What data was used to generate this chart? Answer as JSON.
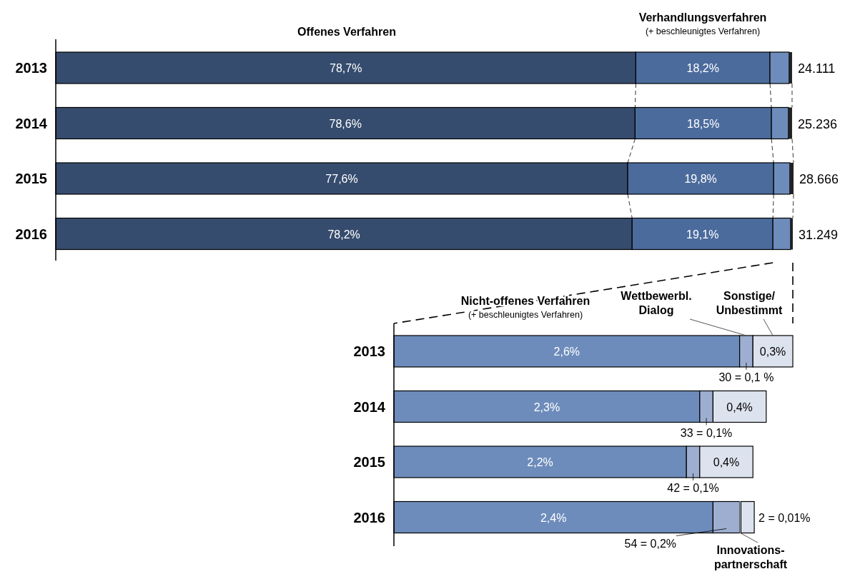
{
  "chart_data": [
    {
      "type": "bar",
      "orientation": "horizontal",
      "stacked": true,
      "categories": [
        "2013",
        "2014",
        "2015",
        "2016"
      ],
      "xlim": [
        0,
        100
      ],
      "tick_labels": "y",
      "series": [
        {
          "name": "Offenes Verfahren",
          "color": "#364c6e",
          "values": [
            78.7,
            78.6,
            77.6,
            78.2
          ],
          "value_labels": [
            "78,7%",
            "78,6%",
            "77,6%",
            "78,2%"
          ]
        },
        {
          "name": "Verhandlungsverfahren\n(+ beschleunigtes Verfahren)",
          "color": "#4b6b9c",
          "values": [
            18.2,
            18.5,
            19.8,
            19.1
          ],
          "value_labels": [
            "18,2%",
            "18,5%",
            "19,8%",
            "19,1%"
          ]
        },
        {
          "color": "#6d8cbb",
          "values": [
            2.6,
            2.3,
            2.2,
            2.4
          ]
        },
        {
          "color": "#222222",
          "values": [
            0.4,
            0.5,
            0.5,
            0.3
          ]
        }
      ],
      "annotations": [
        "24.111",
        "25.236",
        "28.666",
        "31.249"
      ]
    },
    {
      "type": "bar",
      "orientation": "horizontal",
      "stacked": true,
      "categories": [
        "2013",
        "2014",
        "2015",
        "2016"
      ],
      "xlim": [
        0,
        3.0
      ],
      "tick_labels": "y",
      "series": [
        {
          "name": "Nicht-offenes Verfahren\n(+ beschleunigtes Verfahren)",
          "color": "#6d8cbb",
          "values": [
            2.6,
            2.3,
            2.2,
            2.4
          ],
          "value_labels": [
            "2,6%",
            "2,3%",
            "2,2%",
            "2,4%"
          ]
        },
        {
          "name": "Wettbewerbl.\nDialog",
          "color": "#9daed0",
          "values": [
            0.1,
            0.1,
            0.1,
            0.2
          ],
          "value_labels": [
            "30 = 0,1 %",
            "33 = 0,1%",
            "42 = 0,1%",
            "54 = 0,2%"
          ]
        },
        {
          "name": "Innovations-\npartnerschaft",
          "color": "#cfd8e8",
          "values": [
            0,
            0,
            0,
            0.01
          ],
          "value_labels": [
            null,
            null,
            null,
            "2 = 0,01%"
          ]
        },
        {
          "name": "Sonstige/\nUnbestimmt",
          "color": "#dde3ee",
          "values": [
            0.3,
            0.4,
            0.4,
            0.1
          ],
          "value_labels": [
            "0,3%",
            "0,4%",
            "0,4%",
            null
          ]
        }
      ]
    }
  ]
}
